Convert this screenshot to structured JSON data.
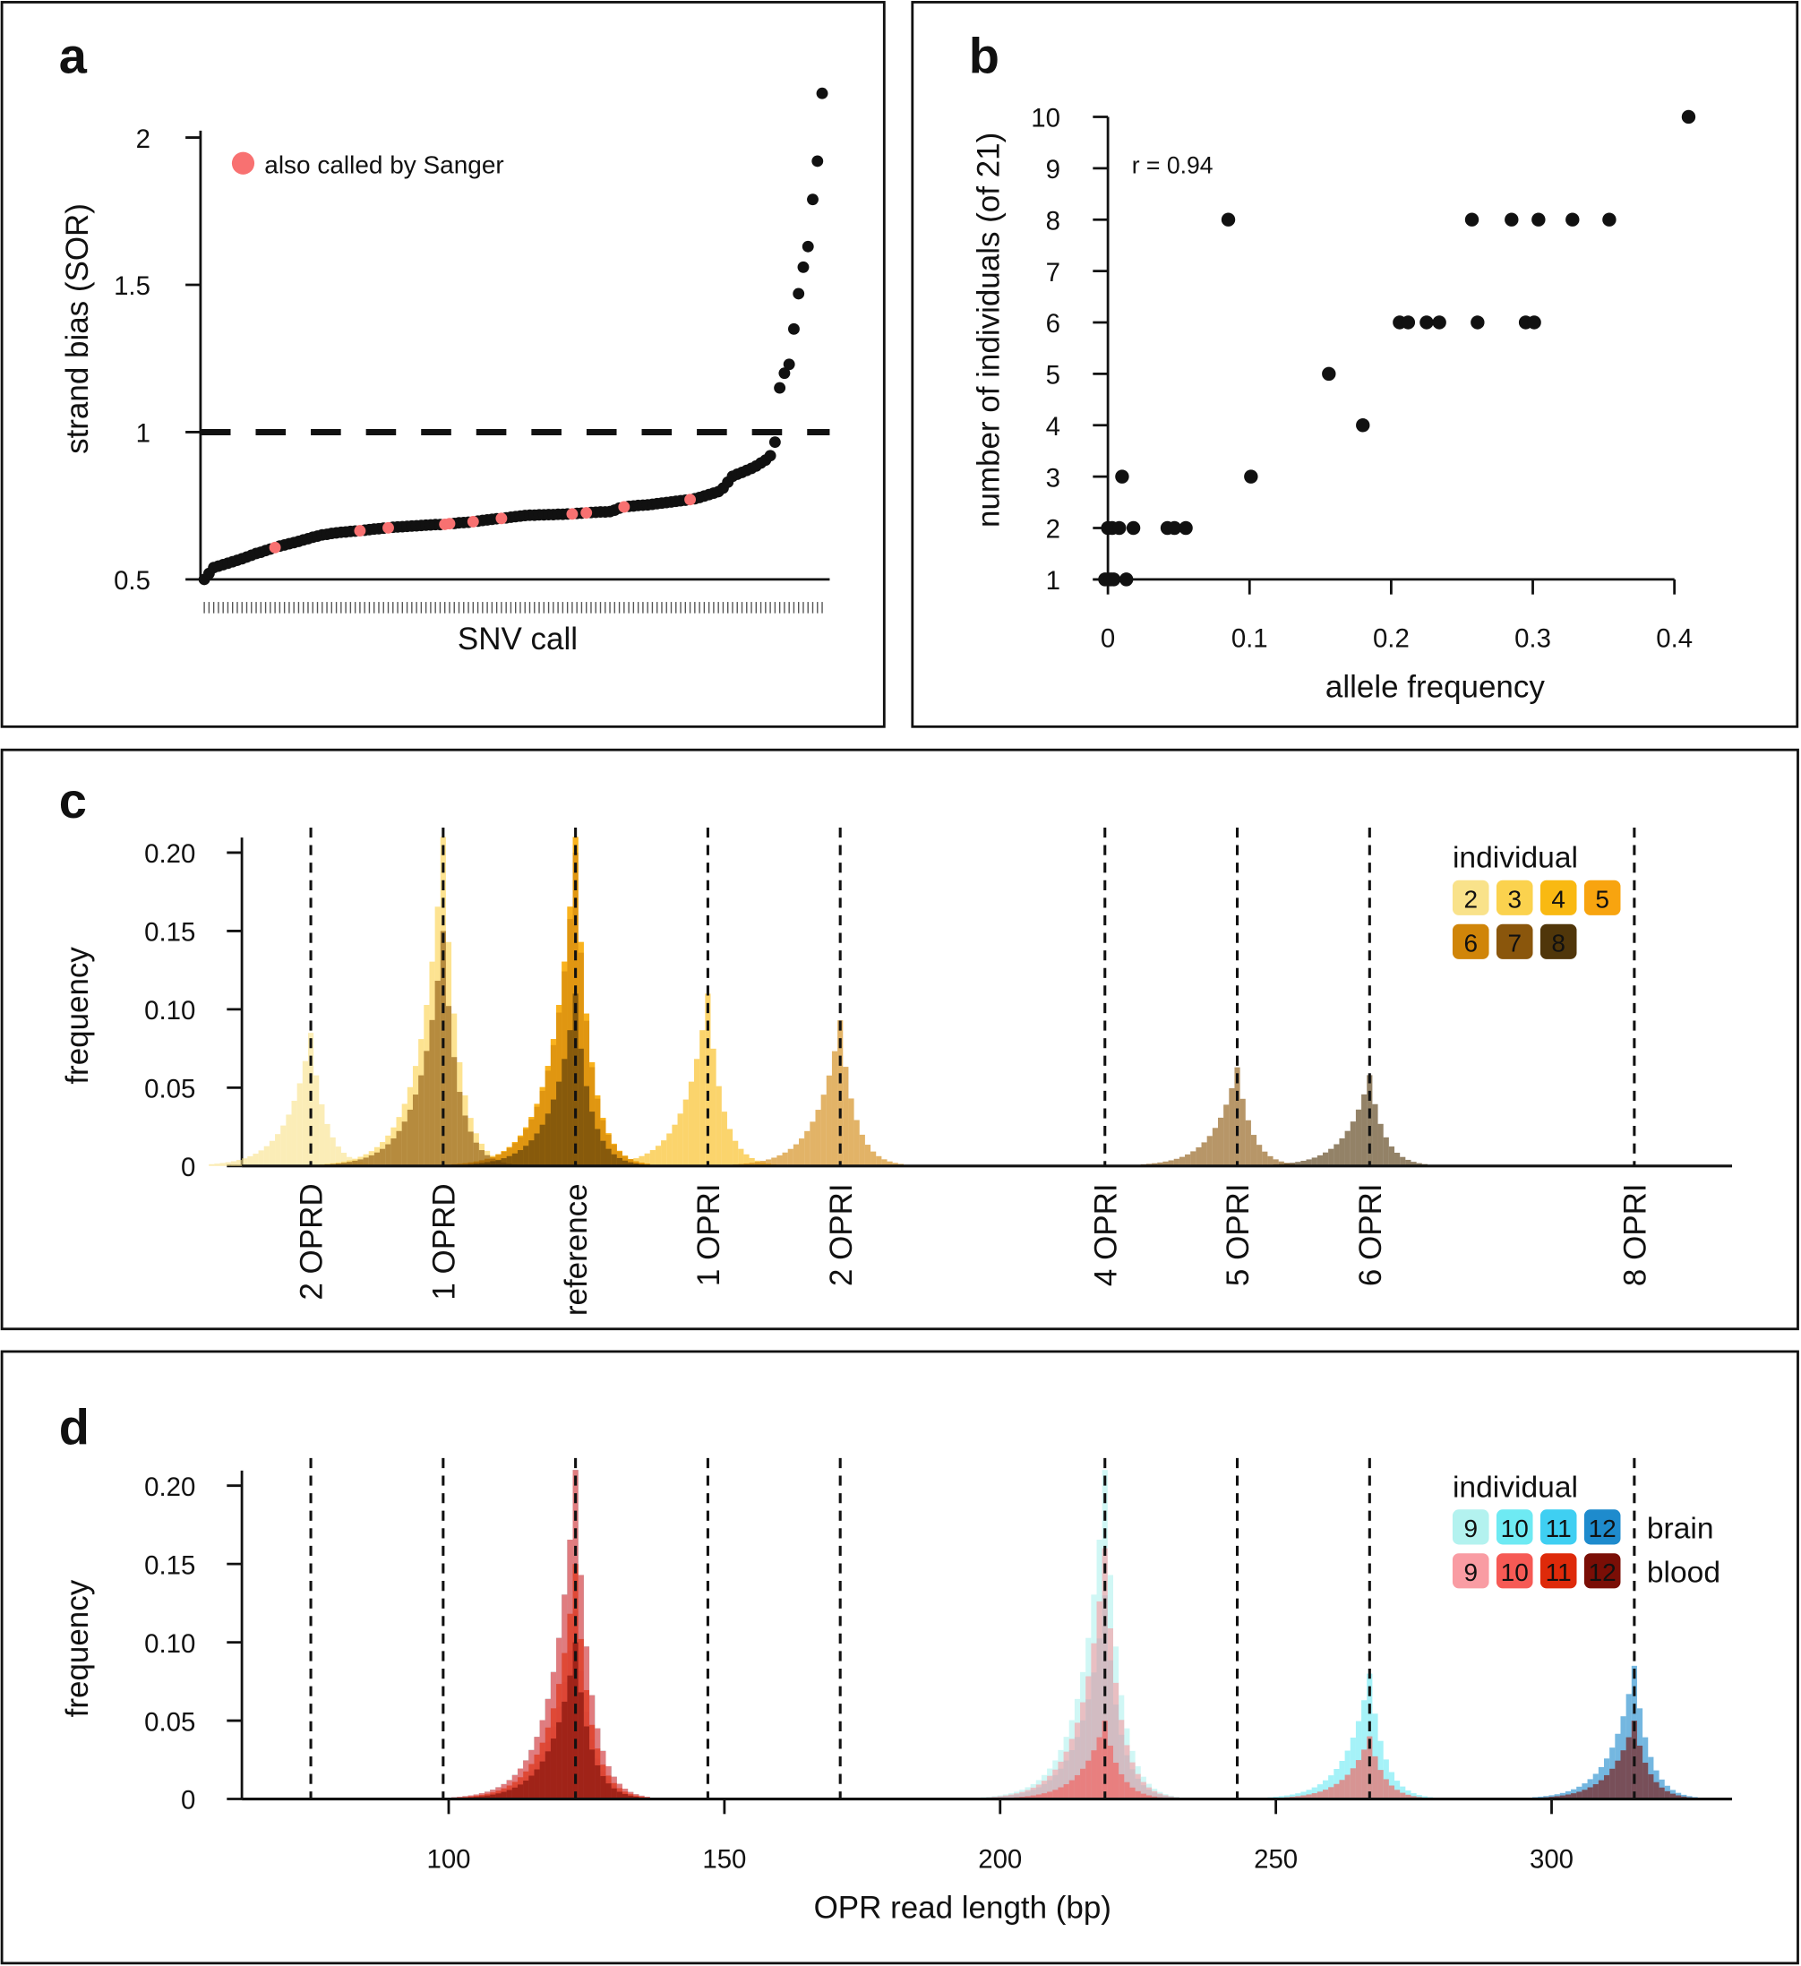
{
  "panels": {
    "a": "a",
    "b": "b",
    "c": "c",
    "d": "d"
  },
  "chart_data": [
    {
      "id": "a",
      "type": "scatter",
      "title": "",
      "xlabel": "SNV call",
      "ylabel": "strand bias (SOR)",
      "ylim": [
        0.5,
        2.15
      ],
      "yticks": [
        "0.5",
        "1",
        "1.5",
        "2"
      ],
      "threshold": 1,
      "legend": {
        "label": "also called by Sanger",
        "color": "#F87171",
        "placement": "top-left"
      },
      "point_color": "#111111",
      "values": [
        0.5,
        0.52,
        0.54,
        0.545,
        0.55,
        0.555,
        0.56,
        0.565,
        0.57,
        0.576,
        0.582,
        0.588,
        0.592,
        0.598,
        0.603,
        0.608,
        0.613,
        0.617,
        0.621,
        0.625,
        0.629,
        0.634,
        0.638,
        0.643,
        0.647,
        0.651,
        0.653,
        0.656,
        0.658,
        0.66,
        0.661,
        0.663,
        0.664,
        0.665,
        0.667,
        0.669,
        0.671,
        0.672,
        0.674,
        0.675,
        0.677,
        0.678,
        0.679,
        0.68,
        0.681,
        0.682,
        0.683,
        0.684,
        0.685,
        0.686,
        0.686,
        0.687,
        0.689,
        0.69,
        0.692,
        0.693,
        0.694,
        0.696,
        0.698,
        0.7,
        0.702,
        0.704,
        0.706,
        0.707,
        0.709,
        0.711,
        0.713,
        0.715,
        0.717,
        0.718,
        0.718,
        0.719,
        0.719,
        0.72,
        0.72,
        0.721,
        0.721,
        0.722,
        0.722,
        0.724,
        0.725,
        0.726,
        0.727,
        0.728,
        0.729,
        0.729,
        0.73,
        0.735,
        0.742,
        0.746,
        0.748,
        0.749,
        0.751,
        0.752,
        0.753,
        0.755,
        0.757,
        0.759,
        0.761,
        0.763,
        0.765,
        0.767,
        0.769,
        0.771,
        0.774,
        0.778,
        0.783,
        0.788,
        0.793,
        0.798,
        0.81,
        0.83,
        0.85,
        0.857,
        0.863,
        0.87,
        0.877,
        0.885,
        0.895,
        0.905,
        0.92,
        0.966,
        1.15,
        1.2,
        1.23,
        1.35,
        1.47,
        1.56,
        1.63,
        1.79,
        1.92,
        2.15
      ],
      "sanger_indices": [
        15,
        33,
        39,
        51,
        52,
        57,
        63,
        78,
        81,
        89,
        103
      ]
    },
    {
      "id": "b",
      "type": "scatter",
      "title": "",
      "xlabel": "allele frequency",
      "ylabel": "number of individuals (of 21)",
      "xlim": [
        0,
        0.4
      ],
      "ylim": [
        1,
        10
      ],
      "xticks": [
        "0",
        "0.1",
        "0.2",
        "0.3",
        "0.4"
      ],
      "yticks": [
        "1",
        "2",
        "3",
        "4",
        "5",
        "6",
        "7",
        "8",
        "9",
        "10"
      ],
      "annotation": "r = 0.94",
      "points": [
        [
          -0.002,
          1
        ],
        [
          0.002,
          1
        ],
        [
          0.004,
          1
        ],
        [
          0.013,
          1
        ],
        [
          0,
          2
        ],
        [
          0.003,
          2
        ],
        [
          0.008,
          2
        ],
        [
          0.018,
          2
        ],
        [
          0.042,
          2
        ],
        [
          0.047,
          2
        ],
        [
          0.055,
          2
        ],
        [
          0.01,
          3
        ],
        [
          0.101,
          3
        ],
        [
          0.18,
          4
        ],
        [
          0.156,
          5
        ],
        [
          0.206,
          6
        ],
        [
          0.212,
          6
        ],
        [
          0.225,
          6
        ],
        [
          0.234,
          6
        ],
        [
          0.261,
          6
        ],
        [
          0.295,
          6
        ],
        [
          0.301,
          6
        ],
        [
          0.085,
          8
        ],
        [
          0.257,
          8
        ],
        [
          0.285,
          8
        ],
        [
          0.304,
          8
        ],
        [
          0.328,
          8
        ],
        [
          0.354,
          8
        ],
        [
          0.41,
          10
        ]
      ]
    },
    {
      "id": "c",
      "type": "bar",
      "title": "",
      "xlabel": "",
      "ylabel": "frequency",
      "xlim": [
        62,
        333
      ],
      "ylim": [
        0,
        0.21
      ],
      "yticks": [
        "0",
        "0.05",
        "0.10",
        "0.15",
        "0.20"
      ],
      "markers": [
        {
          "bp": 75,
          "label": "2 OPRD"
        },
        {
          "bp": 99,
          "label": "1 OPRD"
        },
        {
          "bp": 123,
          "label": "reference"
        },
        {
          "bp": 147,
          "label": "1 OPRI"
        },
        {
          "bp": 171,
          "label": "2 OPRI"
        },
        {
          "bp": 219,
          "label": "4 OPRI"
        },
        {
          "bp": 243,
          "label": "5 OPRI"
        },
        {
          "bp": 267,
          "label": "6 OPRI"
        },
        {
          "bp": 315,
          "label": "8 OPRI"
        }
      ],
      "legend_title": "individual",
      "series": [
        {
          "name": "2",
          "color": "#F9E28A",
          "text_color": "#111",
          "peaks": [
            [
              75,
              0.085
            ],
            [
              123,
              0.21
            ]
          ]
        },
        {
          "name": "3",
          "color": "#FBD24E",
          "text_color": "#111",
          "peaks": [
            [
              99,
              0.21
            ],
            [
              123,
              0.21
            ]
          ]
        },
        {
          "name": "4",
          "color": "#F9B912",
          "text_color": "#111",
          "peaks": [
            [
              123,
              0.21
            ],
            [
              147,
              0.11
            ]
          ]
        },
        {
          "name": "5",
          "color": "#F8A40F",
          "text_color": "#111",
          "peaks": [
            [
              123,
              0.21
            ]
          ]
        },
        {
          "name": "6",
          "color": "#D08509",
          "text_color": "#fff",
          "peaks": [
            [
              123,
              0.2
            ],
            [
              171,
              0.093
            ]
          ]
        },
        {
          "name": "7",
          "color": "#8A560C",
          "text_color": "#fff",
          "peaks": [
            [
              99,
              0.15
            ],
            [
              243,
              0.063
            ]
          ]
        },
        {
          "name": "8",
          "color": "#50360A",
          "text_color": "#fff",
          "peaks": [
            [
              123,
              0.11
            ],
            [
              267,
              0.058
            ]
          ]
        }
      ]
    },
    {
      "id": "d",
      "type": "bar",
      "title": "",
      "xlabel": "OPR read length (bp)",
      "ylabel": "frequency",
      "xlim": [
        62,
        333
      ],
      "ylim": [
        0,
        0.21
      ],
      "xticks": [
        "100",
        "150",
        "200",
        "250",
        "300"
      ],
      "yticks": [
        "0",
        "0.05",
        "0.10",
        "0.15",
        "0.20"
      ],
      "markers_bp": [
        75,
        99,
        123,
        147,
        171,
        219,
        243,
        267,
        315
      ],
      "legend_title": "individual",
      "row_labels": [
        "brain",
        "blood"
      ],
      "series": [
        {
          "name": "9",
          "tissue": "brain",
          "color": "#B3F2EF",
          "text_color": "#111",
          "peaks": [
            [
              123,
              0.21
            ],
            [
              219,
              0.21
            ]
          ]
        },
        {
          "name": "10",
          "tissue": "brain",
          "color": "#6EEAF3",
          "text_color": "#111",
          "peaks": [
            [
              123,
              0.21
            ],
            [
              219,
              0.13
            ],
            [
              267,
              0.08
            ]
          ]
        },
        {
          "name": "11",
          "tissue": "brain",
          "color": "#3FCFF2",
          "text_color": "#fff",
          "peaks": [
            [
              123,
              0.21
            ]
          ]
        },
        {
          "name": "12",
          "tissue": "brain",
          "color": "#1E8BCD",
          "text_color": "#fff",
          "peaks": [
            [
              123,
              0.12
            ],
            [
              315,
              0.085
            ]
          ]
        },
        {
          "name": "9",
          "tissue": "blood",
          "color": "#F99CA3",
          "text_color": "#111",
          "peaks": [
            [
              123,
              0.21
            ],
            [
              219,
              0.16
            ]
          ]
        },
        {
          "name": "10",
          "tissue": "blood",
          "color": "#F65A55",
          "text_color": "#111",
          "peaks": [
            [
              123,
              0.21
            ],
            [
              219,
              0.05
            ],
            [
              267,
              0.04
            ]
          ]
        },
        {
          "name": "11",
          "tissue": "blood",
          "color": "#DE2A0A",
          "text_color": "#fff",
          "peaks": [
            [
              123,
              0.15
            ]
          ]
        },
        {
          "name": "12",
          "tissue": "blood",
          "color": "#7A0E06",
          "text_color": "#fff",
          "peaks": [
            [
              123,
              0.1
            ],
            [
              315,
              0.05
            ]
          ]
        }
      ]
    }
  ]
}
